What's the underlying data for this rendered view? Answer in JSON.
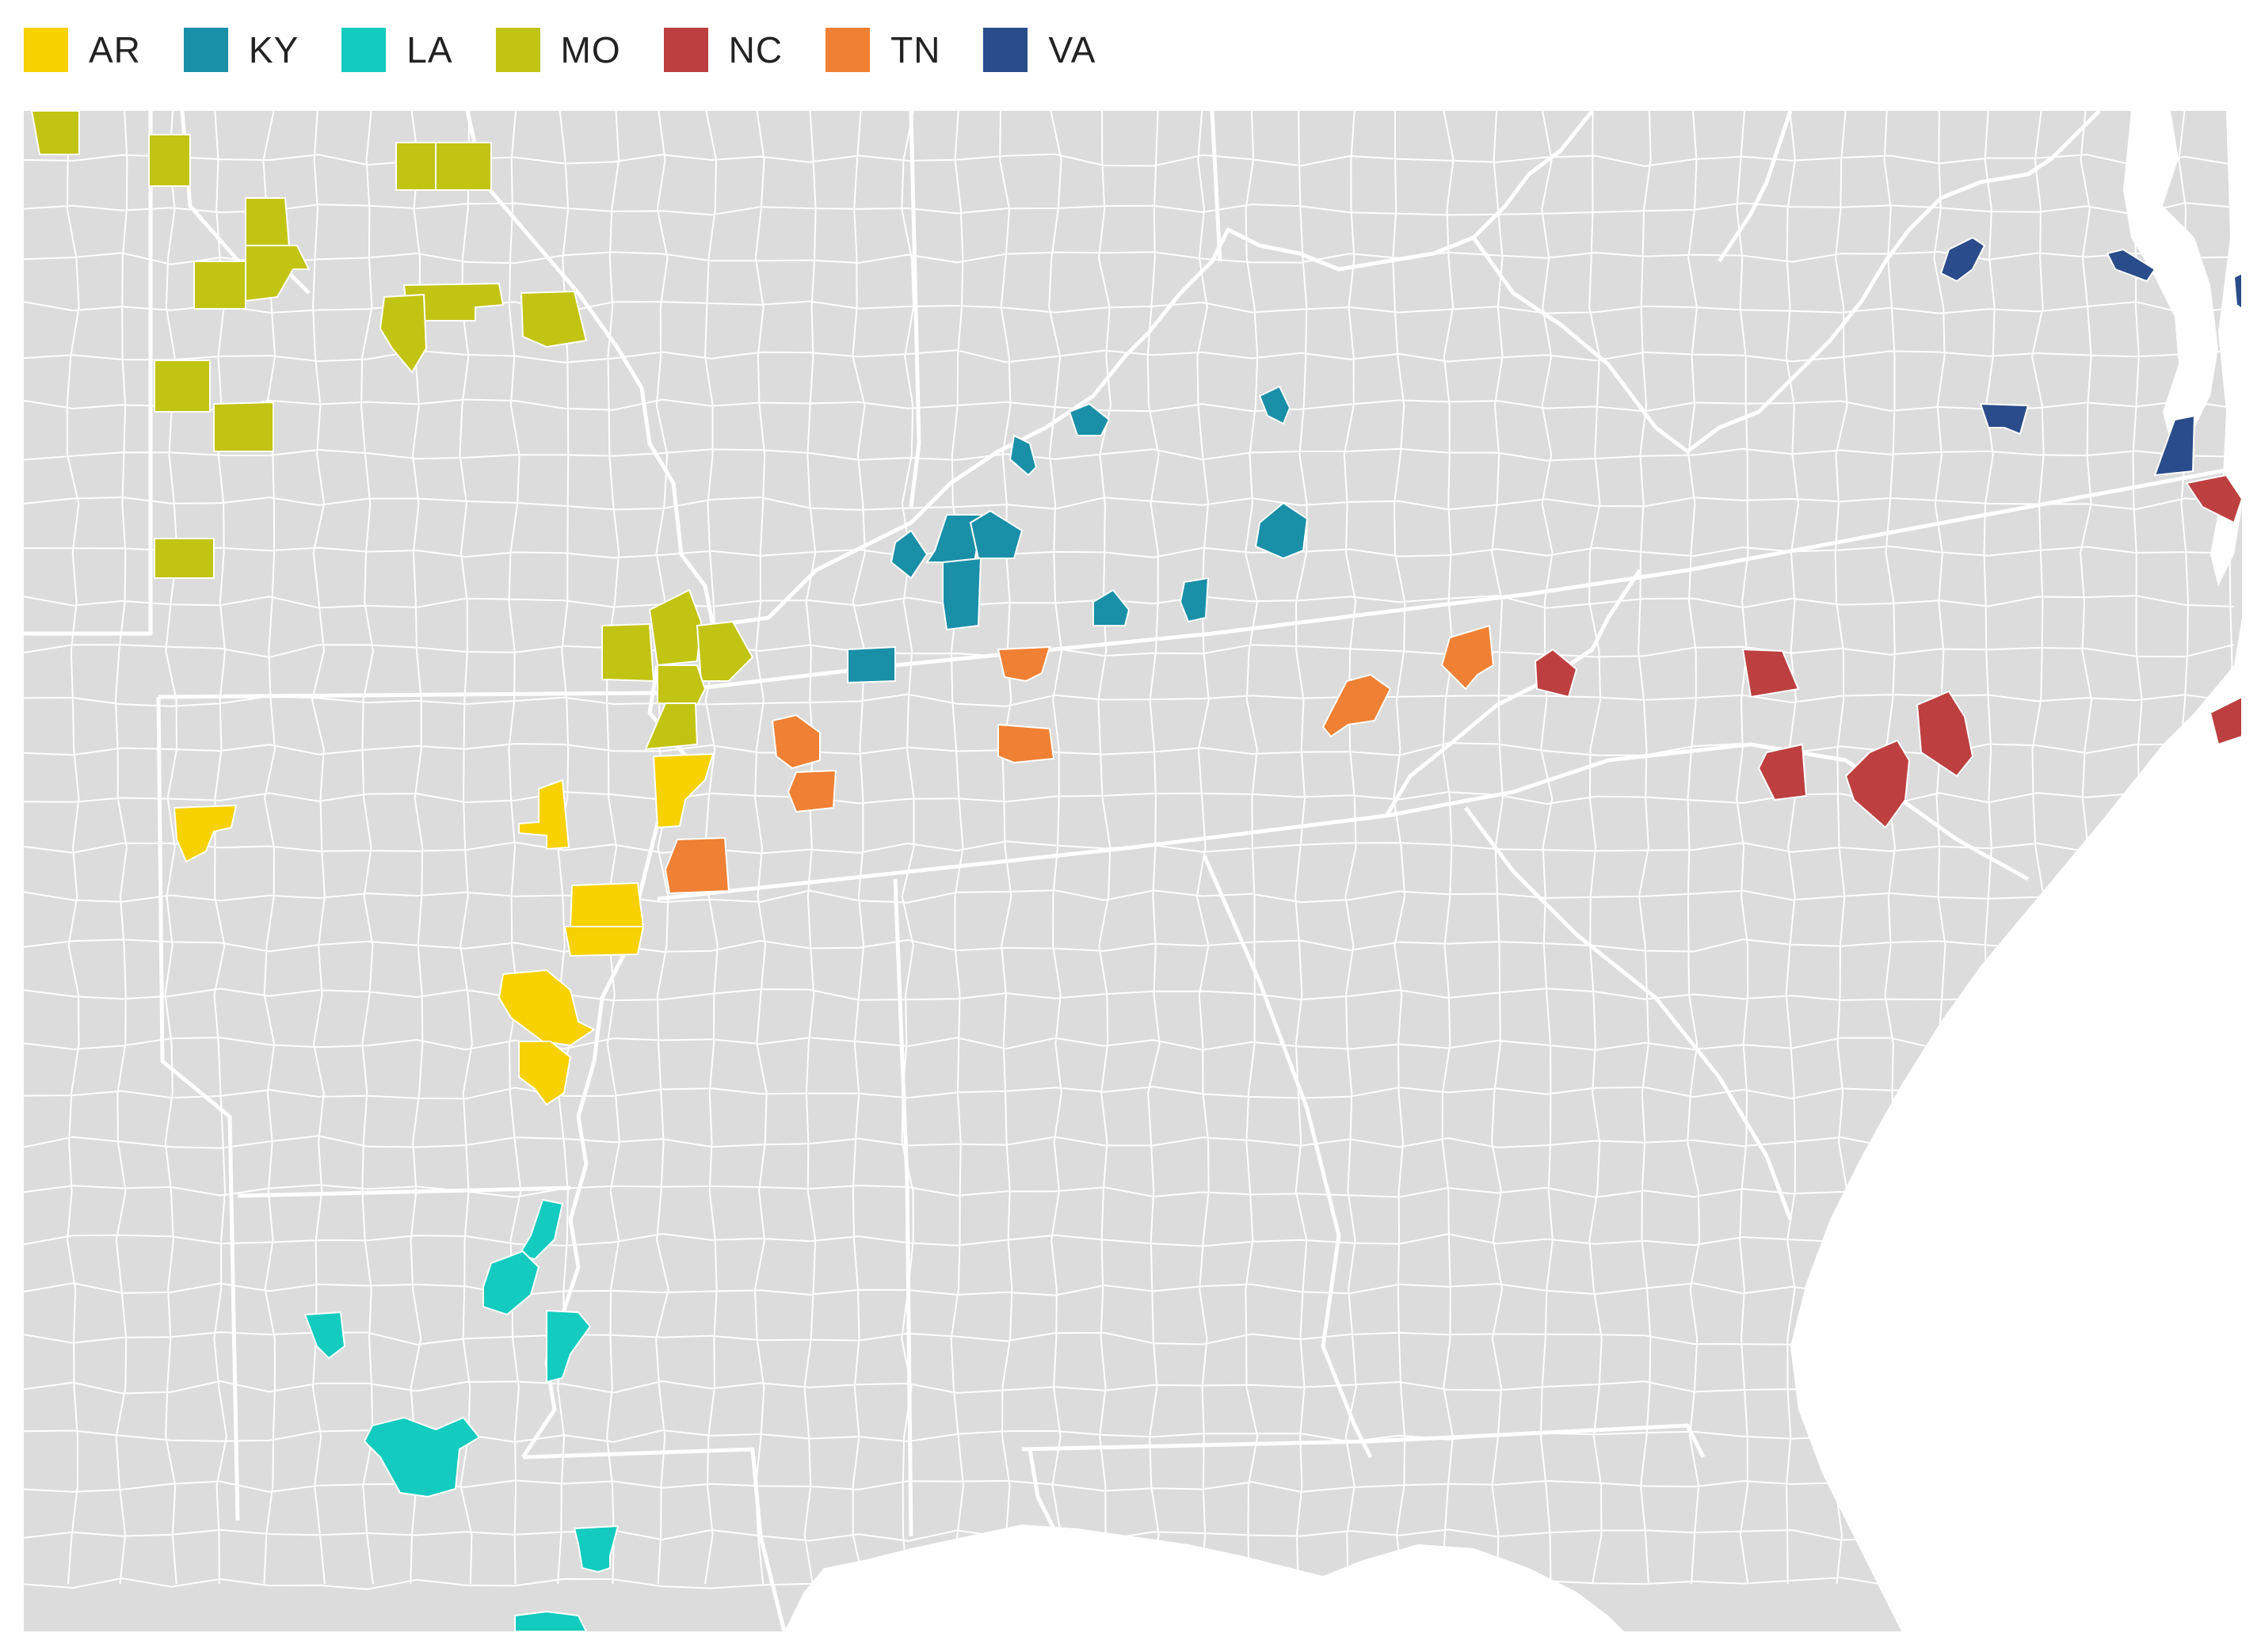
{
  "legend": {
    "items": [
      {
        "label": "AR",
        "color": "#F7D100"
      },
      {
        "label": "KY",
        "color": "#1A8FA8"
      },
      {
        "label": "LA",
        "color": "#13CBBE"
      },
      {
        "label": "MO",
        "color": "#C2C414"
      },
      {
        "label": "NC",
        "color": "#BD3F3F"
      },
      {
        "label": "TN",
        "color": "#F08033"
      },
      {
        "label": "VA",
        "color": "#2B4C8A"
      }
    ]
  },
  "map": {
    "land_color": "#DCDCDC",
    "water_color": "#FFFFFF",
    "county_border_color": "#FFFFFF",
    "state_border_color": "#FFFFFF",
    "region": "Southeastern United States counties",
    "highlighted_groups": [
      "AR",
      "KY",
      "LA",
      "MO",
      "NC",
      "TN",
      "VA"
    ]
  }
}
